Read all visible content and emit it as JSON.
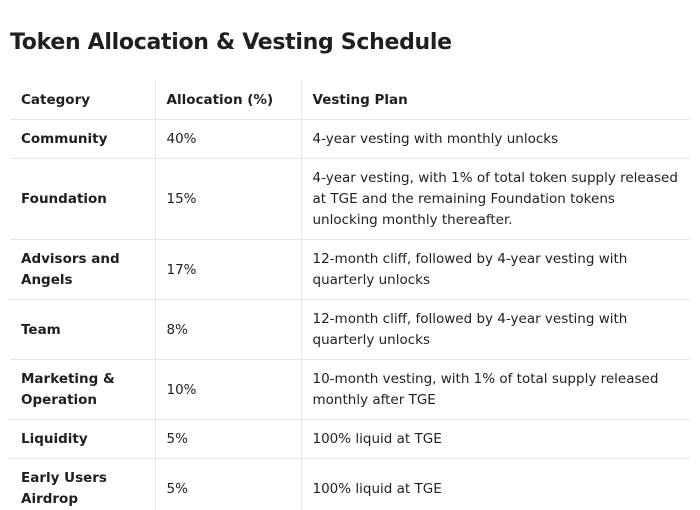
{
  "title": "Token Allocation & Vesting Schedule",
  "table": {
    "header": [
      "Category",
      "Allocation (%)",
      "Vesting Plan"
    ],
    "rows": [
      [
        "Community",
        "40%",
        "4-year vesting with monthly unlocks"
      ],
      [
        "Foundation",
        "15%",
        "4-year vesting, with 1% of total token supply released at TGE and the remaining Foundation tokens unlocking monthly thereafter."
      ],
      [
        "Advisors and Angels",
        "17%",
        "12-month cliff, followed by 4-year vesting with quarterly unlocks"
      ],
      [
        "Team",
        "8%",
        "12-month cliff, followed by 4-year vesting with quarterly unlocks"
      ],
      [
        "Marketing & Operation",
        "10%",
        "10-month vesting, with 1% of total supply released monthly after TGE"
      ],
      [
        "Liquidity",
        "5%",
        "100% liquid at TGE"
      ],
      [
        "Early Users Airdrop",
        "5%",
        "100% liquid at TGE"
      ]
    ]
  }
}
